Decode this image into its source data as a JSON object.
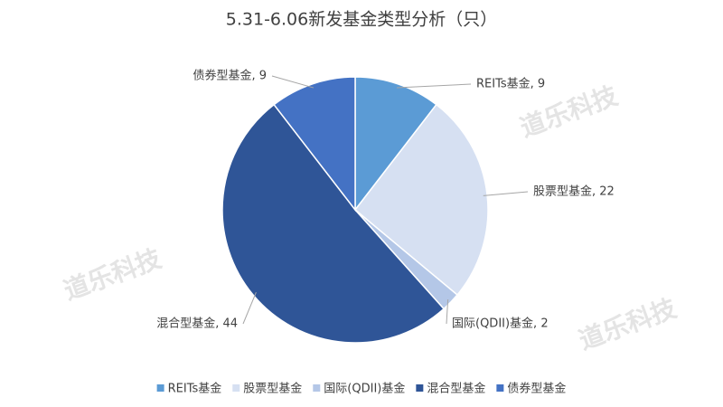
{
  "chart_data": {
    "type": "pie",
    "title": "5.31-6.06新发基金类型分析（只）",
    "categories": [
      "REITs基金",
      "股票型基金",
      "国际(QDII)基金",
      "混合型基金",
      "债券型基金"
    ],
    "values": [
      9,
      22,
      2,
      44,
      9
    ],
    "value_labels": [
      "REITs基金, 9",
      "股票型基金, 22",
      "国际(QDII)基金, 2",
      "混合型基金, 44",
      "债券型基金, 9"
    ],
    "colors": [
      "#5b9bd5",
      "#d6e0f2",
      "#b4c7e7",
      "#2f5597",
      "#4472c4"
    ],
    "legend": "bottom",
    "watermark": "道乐科技"
  }
}
